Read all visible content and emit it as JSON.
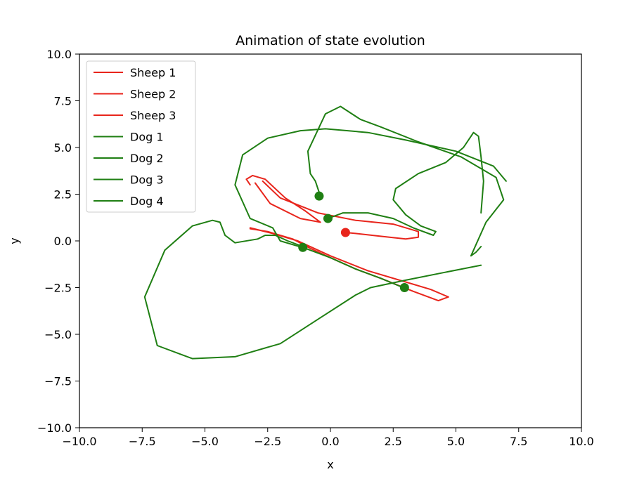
{
  "chart_data": {
    "type": "line",
    "title": "Animation of state evolution",
    "xlabel": "x",
    "ylabel": "y",
    "xlim": [
      -10,
      10
    ],
    "ylim": [
      -10,
      10
    ],
    "xticks": [
      -10,
      -7.5,
      -5,
      -2.5,
      0,
      2.5,
      5,
      7.5,
      10
    ],
    "yticks": [
      -10,
      -7.5,
      -5,
      -2.5,
      0,
      2.5,
      5,
      7.5,
      10
    ],
    "xtick_labels": [
      "−10.0",
      "−7.5",
      "−5.0",
      "−2.5",
      "0.0",
      "2.5",
      "5.0",
      "7.5",
      "10.0"
    ],
    "ytick_labels": [
      "−10.0",
      "−7.5",
      "−5.0",
      "−2.5",
      "0.0",
      "2.5",
      "5.0",
      "7.5",
      "10.0"
    ],
    "grid": false,
    "legend_position": "upper-left",
    "colors": {
      "sheep": "#e8251c",
      "dog": "#1f7f13"
    },
    "series": [
      {
        "name": "Sheep 1",
        "group": "sheep",
        "points": [
          [
            -2.7,
            3.2
          ],
          [
            -2.0,
            2.3
          ],
          [
            -0.5,
            1.5
          ],
          [
            1.0,
            1.1
          ],
          [
            2.5,
            0.9
          ],
          [
            3.5,
            0.5
          ],
          [
            3.5,
            0.2
          ],
          [
            3.0,
            0.1
          ],
          [
            2.0,
            0.25
          ],
          [
            1.0,
            0.4
          ],
          [
            0.6,
            0.45
          ]
        ],
        "marker": [
          0.6,
          0.45
        ]
      },
      {
        "name": "Sheep 2",
        "group": "sheep",
        "points": [
          [
            -3.2,
            3.0
          ],
          [
            -3.35,
            3.3
          ],
          [
            -3.1,
            3.5
          ],
          [
            -2.6,
            3.3
          ],
          [
            -1.8,
            2.3
          ],
          [
            -1.0,
            1.6
          ],
          [
            -0.4,
            1.0
          ],
          [
            -1.2,
            1.2
          ],
          [
            -2.4,
            2.0
          ],
          [
            -3.0,
            3.1
          ]
        ],
        "marker": null
      },
      {
        "name": "Sheep 3",
        "group": "sheep",
        "points": [
          [
            -3.2,
            0.7
          ],
          [
            -2.3,
            0.4
          ],
          [
            -1.3,
            0.0
          ],
          [
            0.0,
            -0.8
          ],
          [
            1.5,
            -1.6
          ],
          [
            3.0,
            -2.2
          ],
          [
            4.0,
            -2.6
          ],
          [
            4.7,
            -3.0
          ],
          [
            4.3,
            -3.2
          ],
          [
            3.3,
            -2.7
          ],
          [
            2.0,
            -2.0
          ],
          [
            1.0,
            -1.5
          ],
          [
            0.0,
            -0.9
          ],
          [
            -0.8,
            -0.4
          ],
          [
            -1.5,
            0.1
          ],
          [
            -2.5,
            0.5
          ],
          [
            -3.2,
            0.65
          ]
        ],
        "marker": null
      },
      {
        "name": "Dog 1",
        "group": "dog",
        "points": [
          [
            -0.4,
            2.4
          ],
          [
            -0.6,
            3.2
          ],
          [
            -0.8,
            3.6
          ],
          [
            -0.9,
            4.8
          ],
          [
            -0.2,
            6.8
          ],
          [
            0.4,
            7.2
          ],
          [
            1.2,
            6.5
          ],
          [
            2.0,
            6.1
          ],
          [
            3.5,
            5.3
          ],
          [
            5.2,
            4.5
          ],
          [
            6.6,
            3.4
          ],
          [
            6.9,
            2.2
          ],
          [
            6.2,
            1.0
          ],
          [
            5.6,
            -0.8
          ],
          [
            5.8,
            -0.6
          ],
          [
            6.0,
            -0.3
          ]
        ],
        "marker": [
          -0.45,
          2.4
        ]
      },
      {
        "name": "Dog 2",
        "group": "dog",
        "points": [
          [
            -0.1,
            1.2
          ],
          [
            0.5,
            1.5
          ],
          [
            1.5,
            1.5
          ],
          [
            2.5,
            1.2
          ],
          [
            3.3,
            0.7
          ],
          [
            4.1,
            0.3
          ],
          [
            4.2,
            0.5
          ],
          [
            3.6,
            0.8
          ],
          [
            3.0,
            1.4
          ],
          [
            2.5,
            2.2
          ],
          [
            2.6,
            2.8
          ],
          [
            3.5,
            3.6
          ],
          [
            4.6,
            4.2
          ],
          [
            5.3,
            5.0
          ],
          [
            5.7,
            5.8
          ],
          [
            5.9,
            5.6
          ],
          [
            6.0,
            4.5
          ],
          [
            6.1,
            3.2
          ],
          [
            6.0,
            1.5
          ]
        ],
        "marker": [
          -0.1,
          1.2
        ]
      },
      {
        "name": "Dog 3",
        "group": "dog",
        "points": [
          [
            -1.1,
            -0.3
          ],
          [
            -1.7,
            0.0
          ],
          [
            -2.2,
            0.3
          ],
          [
            -2.6,
            0.3
          ],
          [
            -2.9,
            0.1
          ],
          [
            -3.8,
            -0.1
          ],
          [
            -4.2,
            0.3
          ],
          [
            -4.4,
            1.0
          ],
          [
            -4.7,
            1.1
          ],
          [
            -5.5,
            0.8
          ],
          [
            -6.6,
            -0.5
          ],
          [
            -7.4,
            -3.0
          ],
          [
            -6.9,
            -5.6
          ],
          [
            -5.5,
            -6.3
          ],
          [
            -3.8,
            -6.2
          ],
          [
            -2.0,
            -5.5
          ],
          [
            -0.5,
            -4.2
          ],
          [
            1.0,
            -2.9
          ],
          [
            1.6,
            -2.5
          ],
          [
            3.0,
            -2.1
          ],
          [
            4.5,
            -1.7
          ],
          [
            6.0,
            -1.3
          ]
        ],
        "marker": [
          -1.1,
          -0.35
        ]
      },
      {
        "name": "Dog 4",
        "group": "dog",
        "points": [
          [
            2.9,
            -2.5
          ],
          [
            2.0,
            -2.0
          ],
          [
            1.0,
            -1.5
          ],
          [
            0.0,
            -0.9
          ],
          [
            -1.0,
            -0.4
          ],
          [
            -2.0,
            0.0
          ],
          [
            -2.3,
            0.7
          ],
          [
            -3.2,
            1.2
          ],
          [
            -3.8,
            3.0
          ],
          [
            -3.5,
            4.6
          ],
          [
            -2.5,
            5.5
          ],
          [
            -1.2,
            5.9
          ],
          [
            -0.2,
            6.0
          ],
          [
            1.5,
            5.8
          ],
          [
            3.0,
            5.4
          ],
          [
            5.0,
            4.8
          ],
          [
            6.5,
            4.0
          ],
          [
            7.0,
            3.2
          ]
        ],
        "marker": [
          2.95,
          -2.5
        ]
      }
    ]
  }
}
